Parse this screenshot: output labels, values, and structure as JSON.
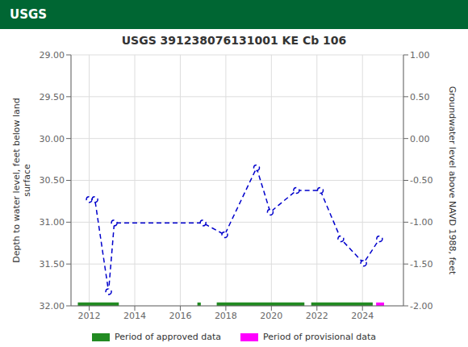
{
  "chart_data": {
    "type": "line",
    "title": "USGS 391238076131001 KE Cb 106",
    "annotations": [
      "USGS"
    ],
    "y_label": "Depth to water level, feet below land\nsurface",
    "y2_label": "Groundwater level above NAVD 1988, feet",
    "xlim": [
      2011.2,
      2025.8
    ],
    "xticks": [
      2012,
      2014,
      2016,
      2018,
      2020,
      2022,
      2024
    ],
    "ylim": [
      32.0,
      29.0
    ],
    "yticks": [
      {
        "value": 29.0,
        "label": "29.00"
      },
      {
        "value": 29.5,
        "label": "29.50"
      },
      {
        "value": 30.0,
        "label": "30.00"
      },
      {
        "value": 30.5,
        "label": "30.50"
      },
      {
        "value": 31.0,
        "label": "31.00"
      },
      {
        "value": 31.5,
        "label": "31.50"
      },
      {
        "value": 32.0,
        "label": "32.00"
      }
    ],
    "y2lim": [
      -2.0,
      1.0
    ],
    "y2ticks": [
      {
        "value": 1.0,
        "label": "1.00"
      },
      {
        "value": 0.5,
        "label": "0.50"
      },
      {
        "value": 0.0,
        "label": "0.00"
      },
      {
        "value": -0.5,
        "label": "-0.50"
      },
      {
        "value": -1.0,
        "label": "-1.00"
      },
      {
        "value": -1.5,
        "label": "-1.50"
      },
      {
        "value": -2.0,
        "label": "-2.00"
      }
    ],
    "grid": true,
    "legend": "bottom",
    "series": [
      {
        "type": "line",
        "color": "#0000CC",
        "marker": "circle",
        "line_style": "dashed",
        "x": [
          2012.0,
          2012.25,
          2012.85,
          2013.1,
          2017.0,
          2017.95,
          2019.35,
          2019.95,
          2021.1,
          2022.15,
          2023.05,
          2024.05,
          2024.75
        ],
        "values": [
          30.73,
          30.73,
          31.83,
          31.01,
          31.01,
          31.15,
          30.35,
          30.88,
          30.62,
          30.62,
          31.2,
          31.49,
          31.2
        ]
      },
      {
        "name": "Period of approved data",
        "type": "range",
        "color": "#228B22",
        "ranges": [
          [
            2011.5,
            2013.3
          ],
          [
            2016.75,
            2016.9
          ],
          [
            2017.6,
            2021.45
          ],
          [
            2021.75,
            2024.45
          ]
        ],
        "y": 32.0,
        "half_height": 0.04
      },
      {
        "name": "Period of provisional data",
        "type": "range",
        "color": "#FF00FF",
        "ranges": [
          [
            2024.6,
            2024.95
          ]
        ],
        "y": 32.0,
        "half_height": 0.04
      }
    ]
  }
}
